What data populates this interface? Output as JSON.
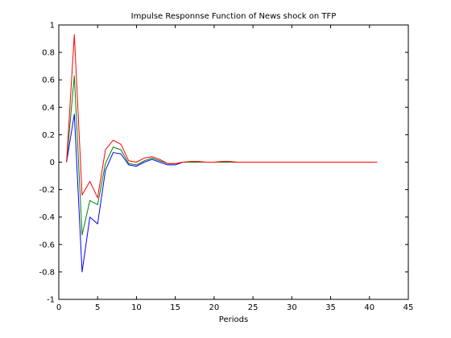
{
  "chart_data": {
    "type": "line",
    "title": "Impulse Responnse Function of News shock on TFP",
    "xlabel": "Periods",
    "ylabel": "",
    "xlim": [
      0,
      45
    ],
    "ylim": [
      -1,
      1
    ],
    "xticks": [
      0,
      5,
      10,
      15,
      20,
      25,
      30,
      35,
      40,
      45
    ],
    "yticks": [
      -1,
      -0.8,
      -0.6,
      -0.4,
      -0.2,
      0,
      0.2,
      0.4,
      0.6,
      0.8,
      1
    ],
    "grid": false,
    "legend": "none",
    "x": [
      1,
      2,
      3,
      4,
      5,
      6,
      7,
      8,
      9,
      10,
      11,
      12,
      13,
      14,
      15,
      16,
      17,
      18,
      19,
      20,
      21,
      22,
      23,
      24,
      25,
      26,
      27,
      28,
      29,
      30,
      31,
      32,
      33,
      34,
      35,
      36,
      37,
      38,
      39,
      40,
      41
    ],
    "series": [
      {
        "color": "#ff0000",
        "values": [
          0.0,
          0.93,
          -0.24,
          -0.14,
          -0.26,
          0.09,
          0.16,
          0.13,
          0.01,
          0.0,
          0.03,
          0.04,
          0.02,
          -0.01,
          -0.01,
          0.0,
          0.005,
          0.005,
          0.0,
          0.0,
          0.005,
          0.005,
          0.0,
          0.0,
          0.0,
          0.0,
          0.0,
          0.0,
          0.0,
          0.0,
          0.0,
          0.0,
          0.0,
          0.0,
          0.0,
          0.0,
          0.0,
          0.0,
          0.0,
          0.0,
          0.0
        ]
      },
      {
        "color": "#008000",
        "values": [
          0.0,
          0.63,
          -0.53,
          -0.28,
          -0.31,
          -0.01,
          0.11,
          0.09,
          -0.01,
          -0.02,
          0.01,
          0.03,
          0.01,
          -0.01,
          -0.01,
          0.0,
          0.0,
          0.0,
          0.0,
          0.0,
          0.0,
          0.0,
          0.0,
          0.0,
          0.0,
          0.0,
          0.0,
          0.0,
          0.0,
          0.0,
          0.0,
          0.0,
          0.0,
          0.0,
          0.0,
          0.0,
          0.0,
          0.0,
          0.0,
          0.0,
          0.0
        ]
      },
      {
        "color": "#0000ff",
        "values": [
          0.0,
          0.35,
          -0.8,
          -0.4,
          -0.45,
          -0.06,
          0.07,
          0.06,
          -0.02,
          -0.03,
          0.0,
          0.02,
          0.0,
          -0.02,
          -0.02,
          0.0,
          0.0,
          0.0,
          0.0,
          0.0,
          0.0,
          0.0,
          0.0,
          0.0,
          0.0,
          0.0,
          0.0,
          0.0,
          0.0,
          0.0,
          0.0,
          0.0,
          0.0,
          0.0,
          0.0,
          0.0,
          0.0,
          0.0,
          0.0,
          0.0,
          0.0
        ]
      }
    ]
  }
}
